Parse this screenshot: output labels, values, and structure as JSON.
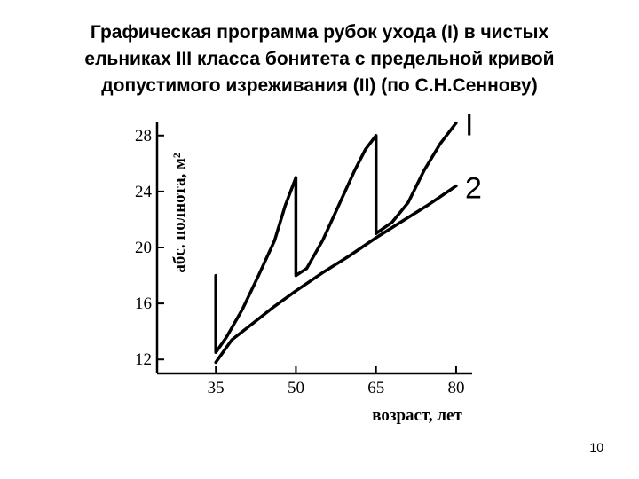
{
  "slide": {
    "title_lines": [
      "Графическая программа рубок ухода (I) в чистых",
      "ельниках III класса бонитета с предельной кривой",
      "допустимого изреживания (II) (по С.Н.Сеннову)"
    ],
    "page_number": "10"
  },
  "chart_data": {
    "type": "line",
    "title": "",
    "xlabel": "возраст, лет",
    "ylabel": "абс. полнота, м²",
    "x_ticks": [
      "35",
      "50",
      "65",
      "80"
    ],
    "y_ticks": [
      "12",
      "16",
      "20",
      "24",
      "28"
    ],
    "xlim": [
      24,
      83
    ],
    "ylim": [
      11,
      29
    ],
    "grid": false,
    "legend": "labels at line ends",
    "series": [
      {
        "name": "I",
        "points": [
          [
            35,
            18
          ],
          [
            35,
            12.5
          ],
          [
            37,
            13.6
          ],
          [
            40,
            15.6
          ],
          [
            43,
            18
          ],
          [
            46,
            20.5
          ],
          [
            48,
            23
          ],
          [
            50,
            25
          ],
          [
            50,
            18
          ],
          [
            52,
            18.5
          ],
          [
            55,
            20.5
          ],
          [
            58,
            23
          ],
          [
            61,
            25.5
          ],
          [
            63,
            27
          ],
          [
            65,
            28
          ],
          [
            65,
            21
          ],
          [
            68,
            21.8
          ],
          [
            71,
            23.2
          ],
          [
            74,
            25.5
          ],
          [
            77,
            27.4
          ],
          [
            80,
            28.9
          ]
        ]
      },
      {
        "name": "2",
        "points": [
          [
            35,
            11.8
          ],
          [
            38,
            13.4
          ],
          [
            42,
            14.6
          ],
          [
            46,
            15.8
          ],
          [
            50,
            16.9
          ],
          [
            55,
            18.2
          ],
          [
            60,
            19.4
          ],
          [
            65,
            20.7
          ],
          [
            70,
            21.9
          ],
          [
            75,
            23.1
          ],
          [
            80,
            24.4
          ]
        ]
      }
    ],
    "line_color": "#000000"
  }
}
